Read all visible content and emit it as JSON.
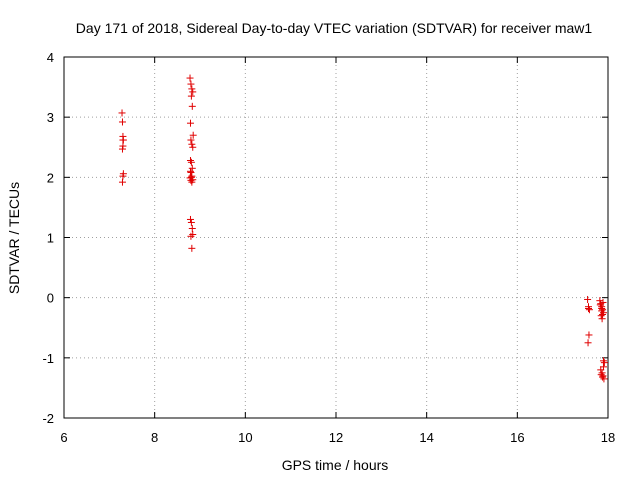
{
  "chart_data": {
    "type": "scatter",
    "title": "Day 171 of 2018, Sidereal Day-to-day VTEC variation (SDTVAR) for receiver maw1",
    "xlabel": "GPS time / hours",
    "ylabel": "SDTVAR / TECUs",
    "xlim": [
      6,
      18
    ],
    "ylim": [
      -2,
      4
    ],
    "xticks": [
      6,
      8,
      10,
      12,
      14,
      16,
      18
    ],
    "yticks": [
      -2,
      -1,
      0,
      1,
      2,
      3,
      4
    ],
    "xtick_labels": [
      "6",
      "8",
      "10",
      "12",
      "14",
      "16",
      "18"
    ],
    "ytick_labels": [
      "-2",
      "-1",
      "0",
      "1",
      "2",
      "3",
      "4"
    ],
    "grid": true,
    "marker": "+",
    "point_color": "#e00000",
    "series": [
      {
        "name": "maw1",
        "x": [
          7.28,
          7.29,
          7.3,
          7.31,
          7.3,
          7.29,
          7.31,
          7.3,
          7.29,
          7.3,
          8.78,
          8.8,
          8.82,
          8.84,
          8.81,
          8.83,
          8.79,
          8.85,
          8.8,
          8.82,
          8.84,
          8.79,
          8.81,
          8.83,
          8.8,
          8.82,
          8.78,
          8.84,
          8.8,
          8.82,
          8.79,
          8.81,
          8.83,
          8.84,
          8.8,
          8.82,
          8.81,
          8.79,
          17.55,
          17.57,
          17.59,
          17.58,
          17.56,
          17.57,
          17.82,
          17.84,
          17.86,
          17.88,
          17.9,
          17.85,
          17.87,
          17.89,
          17.83,
          17.86,
          17.88,
          17.9,
          17.84,
          17.87,
          17.89,
          17.91,
          17.85,
          17.88,
          17.9,
          17.92,
          17.86
        ],
        "y": [
          3.07,
          2.92,
          2.68,
          2.62,
          2.52,
          2.47,
          2.06,
          2.02,
          1.92,
          2.62,
          3.65,
          3.55,
          3.47,
          3.42,
          3.35,
          3.18,
          2.9,
          2.7,
          2.62,
          2.55,
          2.5,
          2.28,
          2.25,
          2.15,
          2.08,
          2.02,
          1.99,
          1.96,
          1.95,
          1.92,
          1.3,
          1.25,
          1.15,
          1.05,
          1.02,
          0.82,
          2.0,
          2.1,
          -0.03,
          -0.15,
          -0.2,
          -0.62,
          -0.75,
          -0.18,
          -0.05,
          -0.1,
          -0.15,
          -0.2,
          -0.25,
          -0.3,
          -0.35,
          -0.08,
          -0.12,
          -0.22,
          -0.28,
          -1.05,
          -1.2,
          -1.25,
          -1.3,
          -1.35,
          -1.28,
          -1.32,
          -1.15,
          -1.08,
          -0.18
        ]
      }
    ]
  }
}
